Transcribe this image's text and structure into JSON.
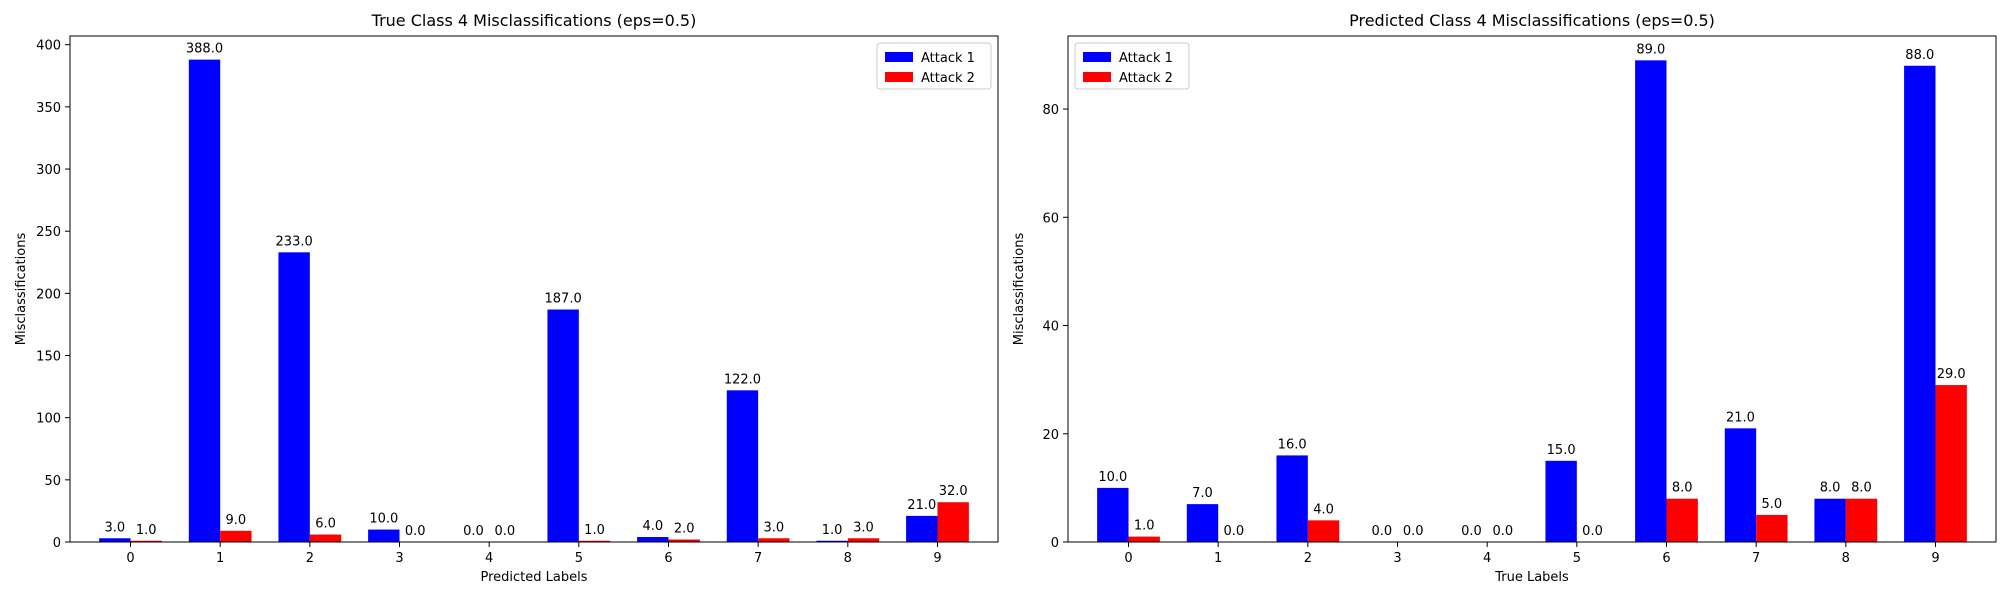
{
  "chart_data": [
    {
      "type": "bar",
      "title": "True Class 4 Misclassifications (eps=0.5)",
      "xlabel": "Predicted Labels",
      "ylabel": "Misclassifications",
      "categories": [
        "0",
        "1",
        "2",
        "3",
        "4",
        "5",
        "6",
        "7",
        "8",
        "9"
      ],
      "yticks": [
        0,
        50,
        100,
        150,
        200,
        250,
        300,
        350,
        400
      ],
      "ylim": [
        0,
        407
      ],
      "legend_position": "top-right",
      "series": [
        {
          "name": "Attack 1",
          "color": "#0000ff",
          "values": [
            3,
            388,
            233,
            10,
            0,
            187,
            4,
            122,
            1,
            21
          ],
          "labels": [
            "3.0",
            "388.0",
            "233.0",
            "10.0",
            "0.0",
            "187.0",
            "4.0",
            "122.0",
            "1.0",
            "21.0"
          ]
        },
        {
          "name": "Attack 2",
          "color": "#ff0000",
          "values": [
            1,
            9,
            6,
            0,
            0,
            1,
            2,
            3,
            3,
            32
          ],
          "labels": [
            "1.0",
            "9.0",
            "6.0",
            "0.0",
            "0.0",
            "1.0",
            "2.0",
            "3.0",
            "3.0",
            "32.0"
          ]
        }
      ]
    },
    {
      "type": "bar",
      "title": "Predicted Class 4 Misclassifications (eps=0.5)",
      "xlabel": "True Labels",
      "ylabel": "Misclassifications",
      "categories": [
        "0",
        "1",
        "2",
        "3",
        "4",
        "5",
        "6",
        "7",
        "8",
        "9"
      ],
      "yticks": [
        0,
        20,
        40,
        60,
        80
      ],
      "ylim": [
        0,
        93.5
      ],
      "legend_position": "top-left",
      "series": [
        {
          "name": "Attack 1",
          "color": "#0000ff",
          "values": [
            10,
            7,
            16,
            0,
            0,
            15,
            89,
            21,
            8,
            88
          ],
          "labels": [
            "10.0",
            "7.0",
            "16.0",
            "0.0",
            "0.0",
            "15.0",
            "89.0",
            "21.0",
            "8.0",
            "88.0"
          ]
        },
        {
          "name": "Attack 2",
          "color": "#ff0000",
          "values": [
            1,
            0,
            4,
            0,
            0,
            0,
            8,
            5,
            8,
            29
          ],
          "labels": [
            "1.0",
            "0.0",
            "4.0",
            "0.0",
            "0.0",
            "0.0",
            "8.0",
            "5.0",
            "8.0",
            "29.0"
          ]
        }
      ]
    }
  ]
}
